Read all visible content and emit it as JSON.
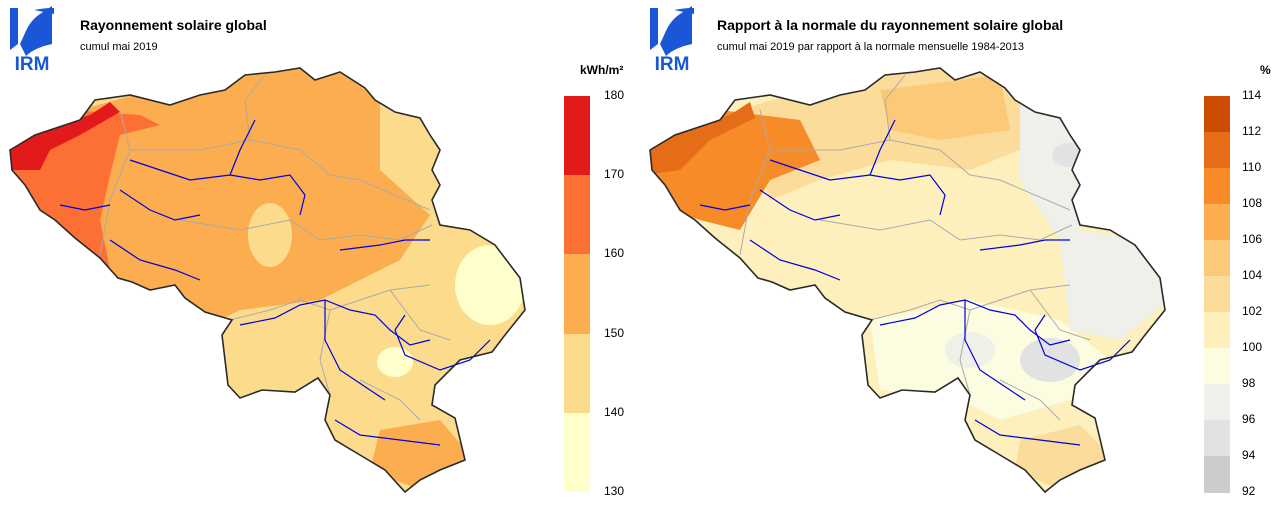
{
  "left": {
    "logo_text": "IRM",
    "title": "Rayonnement solaire global",
    "subtitle": "cumul mai 2019",
    "unit": "kWh/m²",
    "legend": {
      "ticks": [
        "180",
        "170",
        "160",
        "150",
        "140",
        "130"
      ],
      "classes": [
        {
          "range": "170-180",
          "color": "#e31a1c"
        },
        {
          "range": "160-170",
          "color": "#fc6f35"
        },
        {
          "range": "150-160",
          "color": "#fbad4f"
        },
        {
          "range": "140-150",
          "color": "#fcdc8c"
        },
        {
          "range": "130-140",
          "color": "#ffffcc"
        }
      ]
    },
    "map_colors": {
      "high": "#e31a1c",
      "mid_high": "#fc6f35",
      "mid": "#fbad4f",
      "low": "#fcdc8c",
      "lowest": "#ffffcc"
    }
  },
  "right": {
    "logo_text": "IRM",
    "title": "Rapport à la normale du rayonnement solaire global",
    "subtitle": "cumul mai 2019 par rapport à la normale mensuelle 1984-2013",
    "unit": "%",
    "legend": {
      "ticks": [
        "114",
        "112",
        "110",
        "108",
        "106",
        "104",
        "102",
        "100",
        "98",
        "96",
        "94",
        "92"
      ],
      "classes": [
        {
          "range": "112-114",
          "color": "#cc4c02"
        },
        {
          "range": "110-112",
          "color": "#e56d17"
        },
        {
          "range": "108-110",
          "color": "#f68b27"
        },
        {
          "range": "106-108",
          "color": "#fbad4f"
        },
        {
          "range": "104-106",
          "color": "#fcc979"
        },
        {
          "range": "102-104",
          "color": "#fcdc9a"
        },
        {
          "range": "100-102",
          "color": "#fdf0bd"
        },
        {
          "range": "98-100",
          "color": "#fcfce0"
        },
        {
          "range": "96-98",
          "color": "#f0f0ea"
        },
        {
          "range": "94-96",
          "color": "#e2e2e2"
        },
        {
          "range": "92-94",
          "color": "#cccccc"
        }
      ]
    },
    "map_colors": {
      "west": "#e56d17",
      "northwest": "#f68b27",
      "north": "#fcc979",
      "center": "#fdf0bd",
      "south": "#fcfce0",
      "east": "#f0f0ea",
      "southeast": "#fcdc9a"
    }
  },
  "colors": {
    "border": "#2a2a2a",
    "province": "#aaaaaa",
    "river": "#0000dd",
    "logo_blue": "#1a56d6"
  }
}
